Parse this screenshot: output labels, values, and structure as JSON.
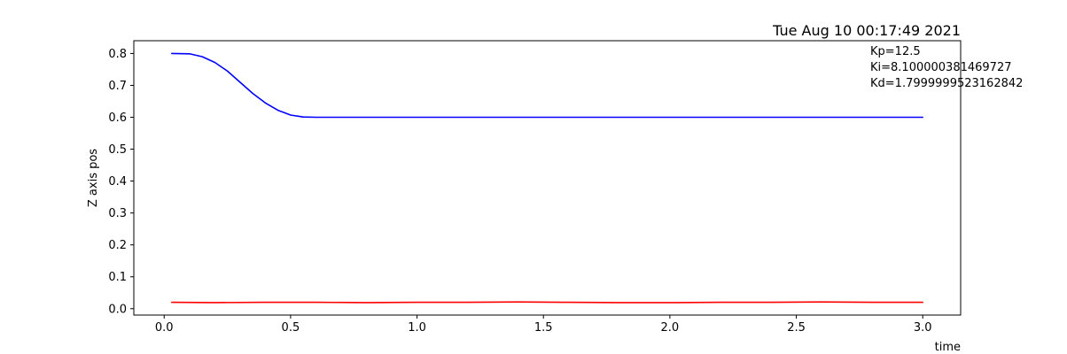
{
  "chart_data": {
    "type": "line",
    "title": "Tue Aug 10 00:17:49 2021",
    "xlabel": "time",
    "ylabel": "Z axis pos",
    "xlim": [
      -0.12,
      3.15
    ],
    "ylim": [
      -0.02,
      0.84
    ],
    "xticks": [
      0.0,
      0.5,
      1.0,
      1.5,
      2.0,
      2.5,
      3.0
    ],
    "xtick_labels": [
      "0.0",
      "0.5",
      "1.0",
      "1.5",
      "2.0",
      "2.5",
      "3.0"
    ],
    "yticks": [
      0.0,
      0.1,
      0.2,
      0.3,
      0.4,
      0.5,
      0.6,
      0.7,
      0.8
    ],
    "ytick_labels": [
      "0.0",
      "0.1",
      "0.2",
      "0.3",
      "0.4",
      "0.5",
      "0.6",
      "0.7",
      "0.8"
    ],
    "grid": false,
    "legend": null,
    "annotations": [
      "Kp=12.5",
      "Ki=8.100000381469727",
      "Kd=1.7999999523162842"
    ],
    "series": [
      {
        "color": "#0000ff",
        "x": [
          0.03,
          0.1,
          0.15,
          0.2,
          0.25,
          0.3,
          0.35,
          0.4,
          0.45,
          0.5,
          0.55,
          0.6,
          0.8,
          1.0,
          1.5,
          2.0,
          2.5,
          3.0
        ],
        "y": [
          0.8,
          0.799,
          0.79,
          0.772,
          0.745,
          0.71,
          0.675,
          0.645,
          0.622,
          0.607,
          0.601,
          0.6,
          0.6,
          0.6,
          0.6,
          0.6,
          0.6,
          0.6
        ]
      },
      {
        "color": "#ff0000",
        "x": [
          0.03,
          0.2,
          0.4,
          0.6,
          0.8,
          1.0,
          1.2,
          1.4,
          1.6,
          1.8,
          2.0,
          2.2,
          2.4,
          2.6,
          2.8,
          3.0
        ],
        "y": [
          0.02,
          0.019,
          0.02,
          0.02,
          0.019,
          0.02,
          0.02,
          0.021,
          0.02,
          0.019,
          0.019,
          0.02,
          0.02,
          0.021,
          0.02,
          0.02
        ]
      }
    ]
  }
}
